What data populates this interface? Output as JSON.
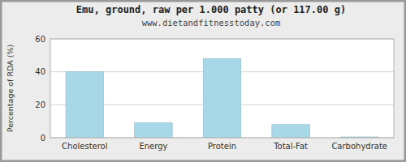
{
  "chart_data": {
    "type": "bar",
    "title": "Emu, ground, raw per 1.000 patty (or 117.00 g)",
    "subtitle": "www.dietandfitnesstoday.com",
    "categories": [
      "Cholesterol",
      "Energy",
      "Protein",
      "Total-Fat",
      "Carbohydrate"
    ],
    "values": [
      40,
      9,
      48,
      8,
      0.5
    ],
    "color": "#a8d8e8",
    "ylabel": "Percentage of RDA (%)",
    "ylim": [
      0,
      60
    ],
    "yticks": [
      0,
      20,
      40,
      60
    ],
    "grid": true
  }
}
